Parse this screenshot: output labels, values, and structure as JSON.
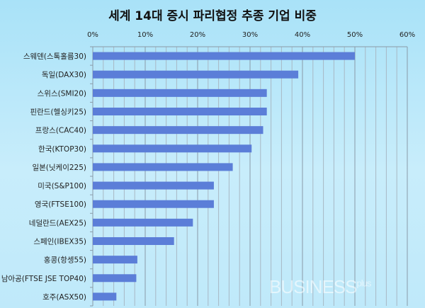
{
  "chart_data": {
    "type": "bar",
    "orientation": "horizontal",
    "title": "세계 14대 증시 파리협정 추종 기업 비중",
    "categories": [
      "스웨덴(스톡홀름30)",
      "독일(DAX30)",
      "스위스(SMI20)",
      "핀란드(헬싱키25)",
      "프랑스(CAC40)",
      "한국(KTOP30)",
      "일본(닛케이225)",
      "미국(S&P100)",
      "영국(FTSE100)",
      "네덜란드(AEX25)",
      "스페인(IBEX35)",
      "홍콩(항셍55)",
      "남아공(FTSE JSE TOP40)",
      "호주(ASX50)"
    ],
    "values": [
      50.0,
      39.2,
      33.2,
      33.2,
      32.5,
      30.3,
      26.7,
      23.1,
      23.1,
      19.1,
      15.5,
      8.5,
      8.3,
      4.5
    ],
    "xlim": [
      0,
      60
    ],
    "xticks": [
      "0%",
      "10%",
      "20%",
      "30%",
      "40%",
      "50%",
      "60%"
    ],
    "axis_position": "top",
    "grid": true,
    "bar_color": "#5b7ed8"
  },
  "watermark": "BUSINESSplus"
}
